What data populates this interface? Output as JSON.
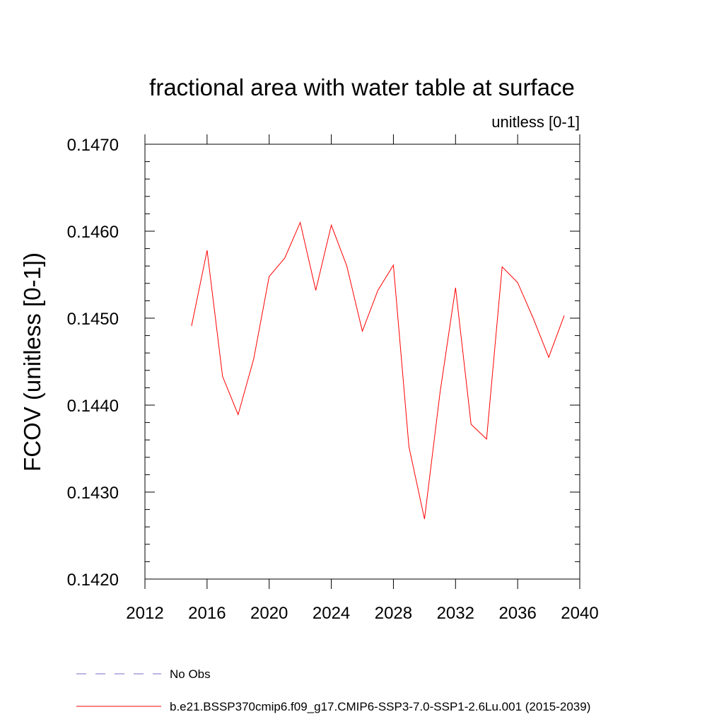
{
  "chart_data": {
    "type": "line",
    "title": "fractional area with water table at surface",
    "subtitle": "unitless [0-1]",
    "xlabel": "",
    "ylabel": "FCOV  (unitless [0-1])",
    "xlim": [
      2012,
      2040
    ],
    "ylim": [
      0.142,
      0.147
    ],
    "x_ticks": [
      2012,
      2016,
      2020,
      2024,
      2028,
      2032,
      2036,
      2040
    ],
    "y_ticks": [
      "0.1420",
      "0.1430",
      "0.1440",
      "0.1450",
      "0.1460",
      "0.1470"
    ],
    "grid": false,
    "legend_position": "bottom",
    "series": [
      {
        "name": "b.e21.BSSP370cmip6.f09_g17.CMIP6-SSP3-7.0-SSP1-2.6Lu.001 (2015-2039)",
        "color": "#ff0000",
        "style": "solid",
        "x": [
          2015,
          2016,
          2017,
          2018,
          2019,
          2020,
          2021,
          2022,
          2023,
          2024,
          2025,
          2026,
          2027,
          2028,
          2029,
          2030,
          2031,
          2032,
          2033,
          2034,
          2035,
          2036,
          2037,
          2038,
          2039
        ],
        "values": [
          0.14491,
          0.14578,
          0.14433,
          0.14389,
          0.14453,
          0.14548,
          0.14569,
          0.1461,
          0.14532,
          0.14607,
          0.1456,
          0.14485,
          0.14532,
          0.14561,
          0.14352,
          0.14269,
          0.14414,
          0.14535,
          0.14378,
          0.14361,
          0.14559,
          0.14541,
          0.145,
          0.14455,
          0.14503
        ]
      }
    ],
    "legend": [
      {
        "label": "No Obs",
        "color": "#7b68c8",
        "style": "dashed"
      },
      {
        "label": "b.e21.BSSP370cmip6.f09_g17.CMIP6-SSP3-7.0-SSP1-2.6Lu.001 (2015-2039)",
        "color": "#ff0000",
        "style": "solid"
      }
    ]
  }
}
